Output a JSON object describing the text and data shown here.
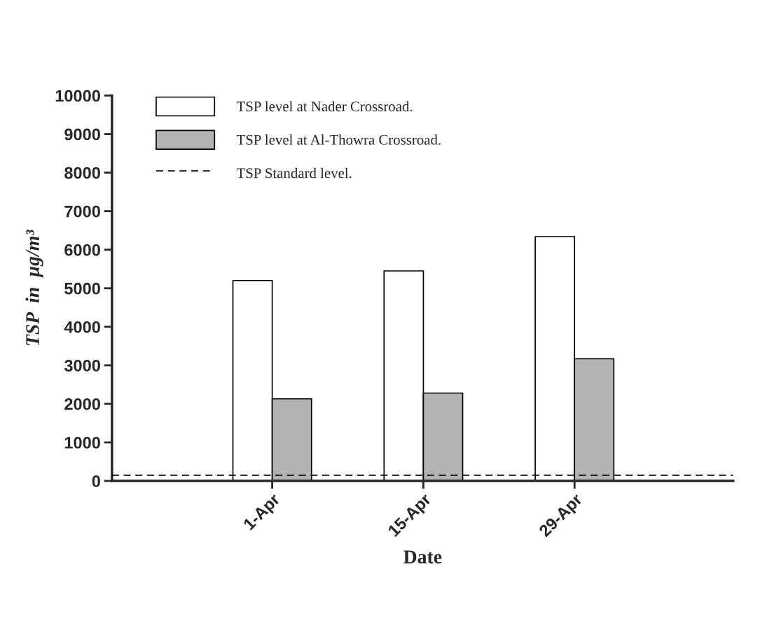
{
  "chart_data": {
    "type": "bar",
    "xlabel": "Date",
    "ylabel": "TSP  in  µg/m³",
    "categories": [
      "1-Apr",
      "15-Apr",
      "29-Apr"
    ],
    "series": [
      {
        "name": "TSP level at Nader Crossroad.",
        "color": "#ffffff",
        "values": [
          5200,
          5450,
          6340
        ]
      },
      {
        "name": "TSP level at Al-Thowra Crossroad.",
        "color": "#b3b3b3",
        "values": [
          2130,
          2280,
          3170
        ]
      }
    ],
    "ref_lines": [
      {
        "axis": "y",
        "value": 150,
        "label": "TSP Standard level.",
        "color": "#000000",
        "line_style": "dashed"
      }
    ],
    "ylim": [
      0,
      10000
    ],
    "yticks": [
      0,
      1000,
      2000,
      3000,
      4000,
      5000,
      6000,
      7000,
      8000,
      9000,
      10000
    ],
    "grid": false,
    "legend": "top left"
  }
}
